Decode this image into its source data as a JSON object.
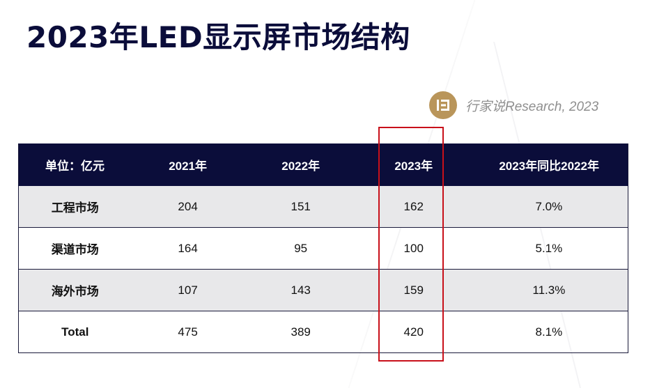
{
  "title": "2023年LED显示屏市场结构",
  "source": {
    "logo_icon": "hangjiashuo-logo-icon",
    "text": "行家说Research, 2023",
    "logo_color": "#b9955a"
  },
  "table": {
    "headers": [
      "单位：亿元",
      "2021年",
      "2022年",
      "2023年",
      "2023年同比2022年"
    ],
    "rows": [
      [
        "工程市场",
        "204",
        "151",
        "162",
        "7.0%"
      ],
      [
        "渠道市场",
        "164",
        "95",
        "100",
        "5.1%"
      ],
      [
        "海外市场",
        "107",
        "143",
        "159",
        "11.3%"
      ],
      [
        "Total",
        "475",
        "389",
        "420",
        "8.1%"
      ]
    ]
  },
  "colors": {
    "header_bg": "#0b0d3a",
    "shaded_row": "#e8e8ea",
    "highlight": "#c8101a"
  }
}
